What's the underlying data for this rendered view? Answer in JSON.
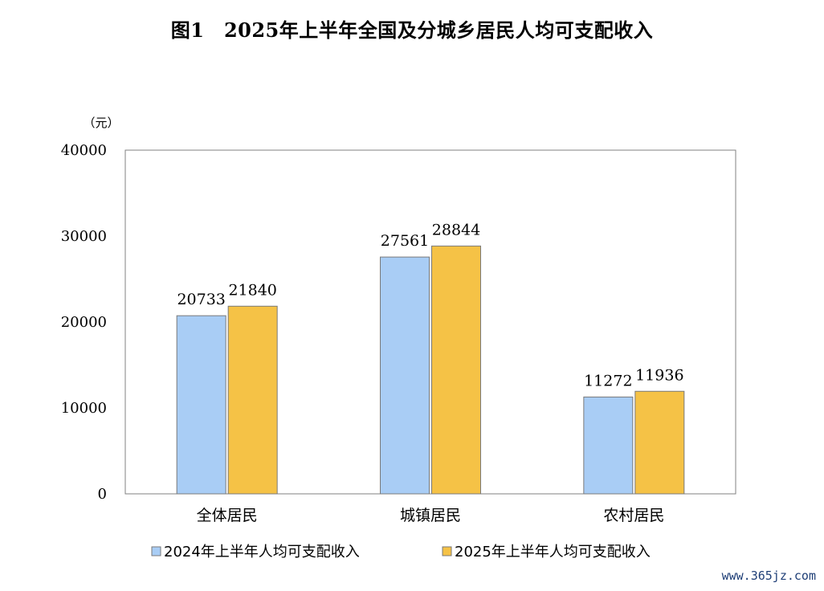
{
  "title": "图1　2025年上半年全国及分城乡居民人均可支配收入",
  "watermark": "www.365jz.com",
  "chart_data": {
    "type": "bar",
    "unit_label": "（元）",
    "categories": [
      "全体居民",
      "城镇居民",
      "农村居民"
    ],
    "series": [
      {
        "name": "2024年上半年人均可支配收入",
        "values": [
          20733,
          27561,
          11272
        ],
        "color": "#a9cdf5"
      },
      {
        "name": "2025年上半年人均可支配收入",
        "values": [
          21840,
          28844,
          11936
        ],
        "color": "#f5c246"
      }
    ],
    "ylim": [
      0,
      40000
    ],
    "yticks": [
      0,
      10000,
      20000,
      30000,
      40000
    ],
    "grid": false,
    "legend_position": "bottom"
  }
}
